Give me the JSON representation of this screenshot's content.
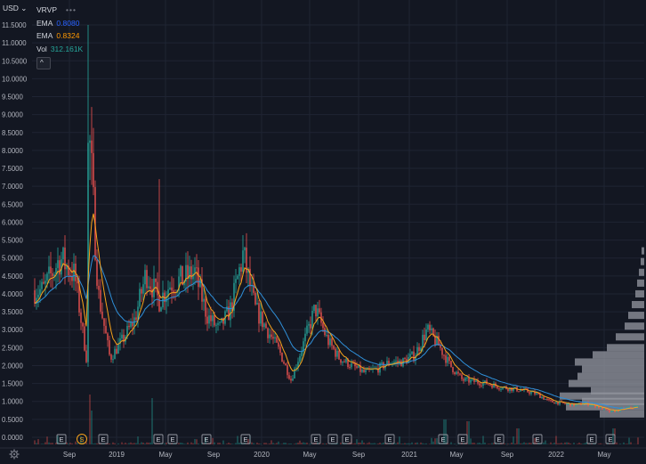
{
  "currency": {
    "label": "USD ⌄"
  },
  "legend": {
    "symbol": "VRVP",
    "more_icon": "ellipsis-icon",
    "ema1": {
      "label": "EMA",
      "value": "0.8080",
      "color": "#2962ff"
    },
    "ema2": {
      "label": "EMA",
      "value": "0.8324",
      "color": "#ff9800"
    },
    "vol": {
      "label": "Vol",
      "value": "312.161K",
      "color": "#26a69a"
    },
    "collapse_icon": "chevron-up-icon"
  },
  "colors": {
    "background": "#131722",
    "grid": "#1f2433",
    "up": "#26a69a",
    "down": "#ef5350",
    "ema_fast": "#f7a21b",
    "ema_slow": "#2f8fd8",
    "volume_profile": "#9598a1",
    "axis_text": "#b2b5be"
  },
  "settings_icon": "gear-icon",
  "chart_data": {
    "type": "candlestick",
    "y_axis": {
      "ticks": [
        "11.5000",
        "11.0000",
        "10.5000",
        "10.0000",
        "9.5000",
        "9.0000",
        "8.5000",
        "8.0000",
        "7.5000",
        "7.0000",
        "6.5000",
        "6.0000",
        "5.5000",
        "5.0000",
        "4.5000",
        "4.0000",
        "3.5000",
        "3.0000",
        "2.5000",
        "2.0000",
        "1.5000",
        "1.0000",
        "0.5000",
        "0.0000"
      ],
      "ylim": [
        0,
        11.5
      ]
    },
    "x_axis": {
      "ticks": [
        "Sep",
        "2019",
        "May",
        "Sep",
        "2020",
        "May",
        "Sep",
        "2021",
        "May",
        "Sep",
        "2022",
        "May"
      ]
    },
    "series": [
      {
        "name": "EMA",
        "value": "0.8080"
      },
      {
        "name": "EMA",
        "value": "0.8324"
      },
      {
        "name": "Vol",
        "value": "312.161K"
      }
    ],
    "price_path": [
      [
        "2018-07",
        4.1
      ],
      [
        "2018-08",
        5.0
      ],
      [
        "2018-09",
        4.5
      ],
      [
        "2018-10",
        2.2
      ],
      [
        "2018-10-20",
        8.8
      ],
      [
        "2018-11",
        4.0
      ],
      [
        "2018-12",
        2.2
      ],
      [
        "2019-01",
        2.7
      ],
      [
        "2019-02",
        3.3
      ],
      [
        "2019-03",
        4.6
      ],
      [
        "2019-04",
        3.8
      ],
      [
        "2019-05",
        4.3
      ],
      [
        "2019-06",
        4.4
      ],
      [
        "2019-07",
        4.6
      ],
      [
        "2019-08",
        3.4
      ],
      [
        "2019-09",
        3.0
      ],
      [
        "2019-10",
        3.6
      ],
      [
        "2019-11",
        5.1
      ],
      [
        "2019-12",
        3.6
      ],
      [
        "2020-01",
        3.0
      ],
      [
        "2020-02",
        2.4
      ],
      [
        "2020-03",
        1.6
      ],
      [
        "2020-04",
        2.6
      ],
      [
        "2020-05",
        3.6
      ],
      [
        "2020-06",
        2.7
      ],
      [
        "2020-07",
        2.2
      ],
      [
        "2020-08",
        2.0
      ],
      [
        "2020-09",
        1.8
      ],
      [
        "2020-10",
        1.9
      ],
      [
        "2020-11",
        2.1
      ],
      [
        "2020-12",
        2.1
      ],
      [
        "2021-01",
        2.3
      ],
      [
        "2021-02",
        3.0
      ],
      [
        "2021-03",
        2.6
      ],
      [
        "2021-04",
        2.0
      ],
      [
        "2021-05",
        1.6
      ],
      [
        "2021-06",
        1.55
      ],
      [
        "2021-07",
        1.5
      ],
      [
        "2021-08",
        1.4
      ],
      [
        "2021-09",
        1.35
      ],
      [
        "2021-10",
        1.3
      ],
      [
        "2021-11",
        1.2
      ],
      [
        "2021-12",
        1.0
      ],
      [
        "2022-01",
        0.95
      ],
      [
        "2022-02",
        0.9
      ],
      [
        "2022-03",
        0.95
      ],
      [
        "2022-04",
        0.85
      ],
      [
        "2022-05",
        0.7
      ],
      [
        "2022-06",
        0.8
      ],
      [
        "2022-07",
        0.85
      ]
    ],
    "spikes": [
      {
        "date": "2018-10-20",
        "high": 11.5
      },
      {
        "date": "2019-04",
        "high": 7.2
      }
    ],
    "event_markers": [
      "E",
      "S",
      "E",
      "E",
      "E",
      "E",
      "E",
      "E",
      "E",
      "E",
      "E",
      "E",
      "E",
      "E",
      "E",
      "E",
      "E"
    ]
  }
}
